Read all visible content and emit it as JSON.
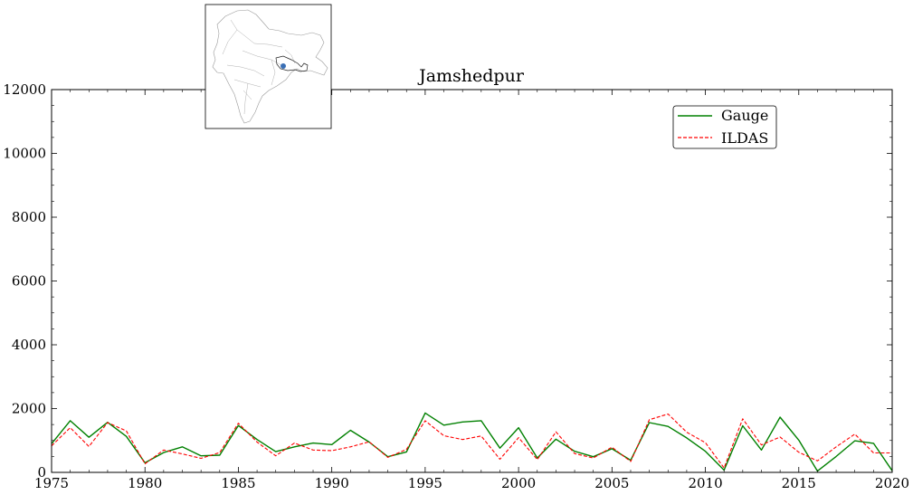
{
  "chart_data": {
    "type": "line",
    "title": "Jamshedpur",
    "xlabel": "",
    "ylabel": "",
    "xlim": [
      1975,
      2020
    ],
    "ylim": [
      0,
      12000
    ],
    "x_ticks": [
      1975,
      1980,
      1985,
      1990,
      1995,
      2000,
      2005,
      2010,
      2015,
      2020
    ],
    "y_ticks": [
      0,
      2000,
      4000,
      6000,
      8000,
      10000,
      12000
    ],
    "grid": false,
    "legend_position": "top-right",
    "x": [
      1975,
      1976,
      1977,
      1978,
      1979,
      1980,
      1981,
      1982,
      1983,
      1984,
      1985,
      1986,
      1987,
      1988,
      1989,
      1990,
      1991,
      1992,
      1993,
      1994,
      1995,
      1996,
      1997,
      1998,
      1999,
      2000,
      2001,
      2002,
      2003,
      2004,
      2005,
      2006,
      2007,
      2008,
      2009,
      2010,
      2011,
      2012,
      2013,
      2014,
      2015,
      2016,
      2017,
      2018,
      2019,
      2020
    ],
    "series": [
      {
        "name": "Gauge",
        "color": "#008000",
        "dash": "solid",
        "values": [
          900,
          1620,
          1100,
          1570,
          1130,
          300,
          620,
          800,
          520,
          540,
          1470,
          1030,
          650,
          800,
          920,
          870,
          1320,
          950,
          490,
          640,
          1860,
          1480,
          1580,
          1620,
          760,
          1400,
          450,
          1040,
          660,
          490,
          740,
          380,
          1560,
          1440,
          1080,
          660,
          70,
          1460,
          700,
          1730,
          1010,
          40,
          500,
          990,
          910,
          50
        ]
      },
      {
        "name": "ILDAS",
        "color": "#ff0000",
        "dash": "dashed",
        "values": [
          830,
          1400,
          810,
          1560,
          1300,
          270,
          700,
          580,
          440,
          620,
          1540,
          950,
          520,
          920,
          700,
          680,
          800,
          960,
          470,
          720,
          1620,
          1150,
          1030,
          1140,
          410,
          1090,
          400,
          1270,
          590,
          450,
          790,
          340,
          1650,
          1830,
          1260,
          930,
          140,
          1680,
          860,
          1110,
          630,
          360,
          800,
          1200,
          610,
          610
        ]
      }
    ]
  },
  "inset_map": {
    "marker_color": "#3a6fb5"
  }
}
